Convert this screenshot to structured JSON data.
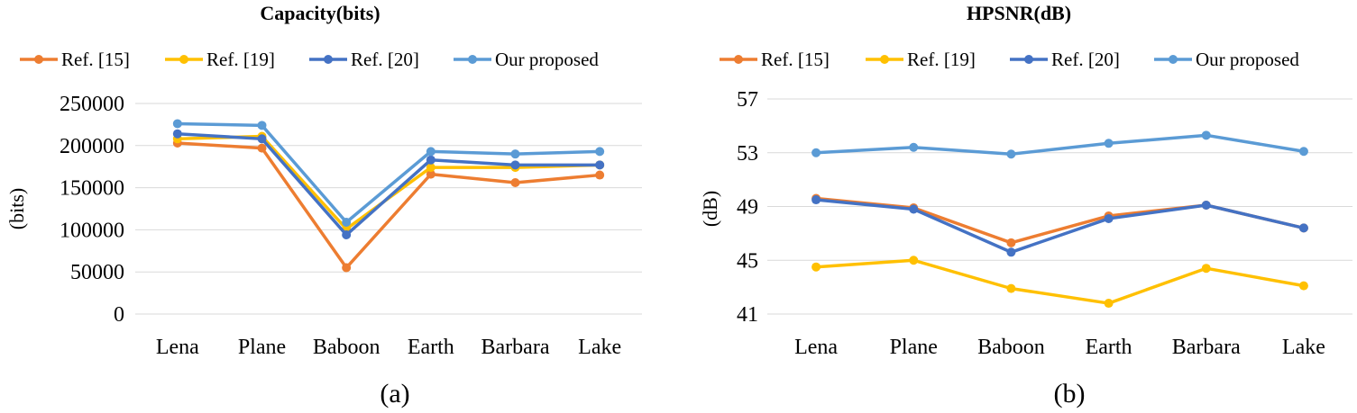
{
  "chart_data": [
    {
      "type": "line",
      "title": "Capacity(bits)",
      "ylabel": "(bits)",
      "xlabel": "",
      "caption": "(a)",
      "categories": [
        "Lena",
        "Plane",
        "Baboon",
        "Earth",
        "Barbara",
        "Lake"
      ],
      "ylim": [
        0,
        250000
      ],
      "yticks": [
        0,
        50000,
        100000,
        150000,
        200000,
        250000
      ],
      "grid": true,
      "legend_position": "top",
      "series": [
        {
          "name": "Ref. [15]",
          "color": "#ed7d31",
          "values": [
            203000,
            197000,
            55000,
            166000,
            156000,
            165000
          ]
        },
        {
          "name": "Ref. [19]",
          "color": "#ffc000",
          "values": [
            208000,
            211000,
            101000,
            174000,
            174000,
            177000
          ]
        },
        {
          "name": "Ref. [20]",
          "color": "#4472c4",
          "values": [
            214000,
            208000,
            94000,
            183000,
            177000,
            177000
          ]
        },
        {
          "name": "Our proposed",
          "color": "#5b9bd5",
          "values": [
            226000,
            224000,
            109000,
            193000,
            190000,
            193000
          ]
        }
      ]
    },
    {
      "type": "line",
      "title": "HPSNR(dB)",
      "ylabel": "(dB)",
      "xlabel": "",
      "caption": "(b)",
      "categories": [
        "Lena",
        "Plane",
        "Baboon",
        "Earth",
        "Barbara",
        "Lake"
      ],
      "ylim": [
        41,
        57
      ],
      "yticks": [
        41,
        45,
        49,
        53,
        57
      ],
      "grid": true,
      "legend_position": "top",
      "series": [
        {
          "name": "Ref. [15]",
          "color": "#ed7d31",
          "values": [
            49.6,
            48.9,
            46.3,
            48.3,
            49.1,
            47.4
          ]
        },
        {
          "name": "Ref. [19]",
          "color": "#ffc000",
          "values": [
            44.5,
            45.0,
            42.9,
            41.8,
            44.4,
            43.1
          ]
        },
        {
          "name": "Ref. [20]",
          "color": "#4472c4",
          "values": [
            49.5,
            48.8,
            45.6,
            48.1,
            49.1,
            47.4
          ]
        },
        {
          "name": "Our proposed",
          "color": "#5b9bd5",
          "values": [
            53.0,
            53.4,
            52.9,
            53.7,
            54.3,
            53.1
          ]
        }
      ]
    }
  ]
}
